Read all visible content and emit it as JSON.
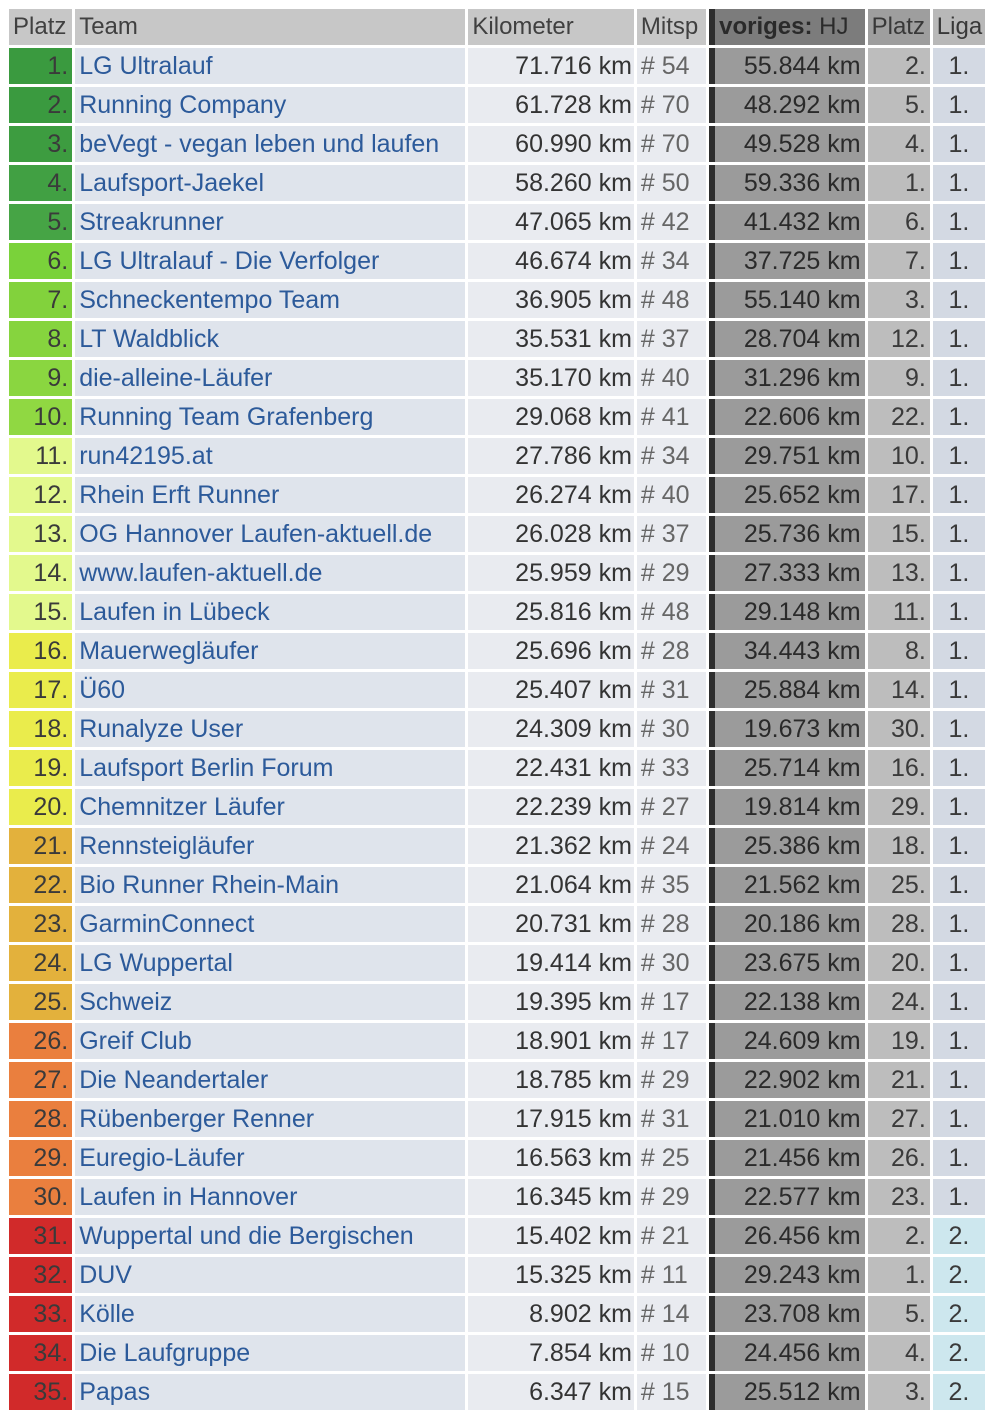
{
  "headers": {
    "platz": "Platz",
    "team": "Team",
    "kilometer": "Kilometer",
    "mitsp": "Mitsp",
    "voriges_bold": "voriges:",
    "voriges_rest": " HJ",
    "platz_prev": "Platz",
    "liga": "Liga"
  },
  "rows": [
    {
      "platz": "1.",
      "team": "LG Ultralauf",
      "km": "71.716 km",
      "mit": "# 54",
      "prev_km": "55.844 km",
      "prev_platz": "2.",
      "liga": "1.",
      "rank_color": "#3a9a3f"
    },
    {
      "platz": "2.",
      "team": "Running Company",
      "km": "61.728 km",
      "mit": "# 70",
      "prev_km": "48.292 km",
      "prev_platz": "5.",
      "liga": "1.",
      "rank_color": "#3a9a3f"
    },
    {
      "platz": "3.",
      "team": "beVegt - vegan leben und laufen",
      "km": "60.990 km",
      "mit": "# 70",
      "prev_km": "49.528 km",
      "prev_platz": "4.",
      "liga": "1.",
      "rank_color": "#3d9c40"
    },
    {
      "platz": "4.",
      "team": "Laufsport-Jaekel",
      "km": "58.260 km",
      "mit": "# 50",
      "prev_km": "59.336 km",
      "prev_platz": "1.",
      "liga": "1.",
      "rank_color": "#41a043"
    },
    {
      "platz": "5.",
      "team": "Streakrunner",
      "km": "47.065 km",
      "mit": "# 42",
      "prev_km": "41.432 km",
      "prev_platz": "6.",
      "liga": "1.",
      "rank_color": "#46a445"
    },
    {
      "platz": "6.",
      "team": "LG Ultralauf - Die Verfolger",
      "km": "46.674 km",
      "mit": "# 34",
      "prev_km": "37.725 km",
      "prev_platz": "7.",
      "liga": "1.",
      "rank_color": "#7ad23a"
    },
    {
      "platz": "7.",
      "team": "Schneckentempo Team",
      "km": "36.905 km",
      "mit": "# 48",
      "prev_km": "55.140 km",
      "prev_platz": "3.",
      "liga": "1.",
      "rank_color": "#82d23c"
    },
    {
      "platz": "8.",
      "team": "LT Waldblick",
      "km": "35.531 km",
      "mit": "# 37",
      "prev_km": "28.704 km",
      "prev_platz": "12.",
      "liga": "1.",
      "rank_color": "#86d43e"
    },
    {
      "platz": "9.",
      "team": "die-alleine-Läufer",
      "km": "35.170 km",
      "mit": "# 40",
      "prev_km": "31.296 km",
      "prev_platz": "9.",
      "liga": "1.",
      "rank_color": "#8ad640"
    },
    {
      "platz": "10.",
      "team": "Running Team Grafenberg",
      "km": "29.068 km",
      "mit": "# 41",
      "prev_km": "22.606 km",
      "prev_platz": "22.",
      "liga": "1.",
      "rank_color": "#90d842"
    },
    {
      "platz": "11.",
      "team": "run42195.at",
      "km": "27.786 km",
      "mit": "# 34",
      "prev_km": "29.751 km",
      "prev_platz": "10.",
      "liga": "1.",
      "rank_color": "#e3f98d"
    },
    {
      "platz": "12.",
      "team": "Rhein Erft Runner",
      "km": "26.274 km",
      "mit": "# 40",
      "prev_km": "25.652 km",
      "prev_platz": "17.",
      "liga": "1.",
      "rank_color": "#e3f98d"
    },
    {
      "platz": "13.",
      "team": "OG Hannover Laufen-aktuell.de",
      "km": "26.028 km",
      "mit": "# 37",
      "prev_km": "25.736 km",
      "prev_platz": "15.",
      "liga": "1.",
      "rank_color": "#e3f98d"
    },
    {
      "platz": "14.",
      "team": "www.laufen-aktuell.de",
      "km": "25.959 km",
      "mit": "# 29",
      "prev_km": "27.333 km",
      "prev_platz": "13.",
      "liga": "1.",
      "rank_color": "#e3f98d"
    },
    {
      "platz": "15.",
      "team": "Laufen in Lübeck",
      "km": "25.816 km",
      "mit": "# 48",
      "prev_km": "29.148 km",
      "prev_platz": "11.",
      "liga": "1.",
      "rank_color": "#e3f98d"
    },
    {
      "platz": "16.",
      "team": "Mauerwegläufer",
      "km": "25.696 km",
      "mit": "# 28",
      "prev_km": "34.443 km",
      "prev_platz": "8.",
      "liga": "1.",
      "rank_color": "#eaec4c"
    },
    {
      "platz": "17.",
      "team": "Ü60",
      "km": "25.407 km",
      "mit": "# 31",
      "prev_km": "25.884 km",
      "prev_platz": "14.",
      "liga": "1.",
      "rank_color": "#eaec4c"
    },
    {
      "platz": "18.",
      "team": "Runalyze User",
      "km": "24.309 km",
      "mit": "# 30",
      "prev_km": "19.673 km",
      "prev_platz": "30.",
      "liga": "1.",
      "rank_color": "#eaec4c"
    },
    {
      "platz": "19.",
      "team": "Laufsport Berlin Forum",
      "km": "22.431 km",
      "mit": "# 33",
      "prev_km": "25.714 km",
      "prev_platz": "16.",
      "liga": "1.",
      "rank_color": "#eaec4c"
    },
    {
      "platz": "20.",
      "team": "Chemnitzer Läufer",
      "km": "22.239 km",
      "mit": "# 27",
      "prev_km": "19.814 km",
      "prev_platz": "29.",
      "liga": "1.",
      "rank_color": "#eaec4c"
    },
    {
      "platz": "21.",
      "team": "Rennsteigläufer",
      "km": "21.362 km",
      "mit": "# 24",
      "prev_km": "25.386 km",
      "prev_platz": "18.",
      "liga": "1.",
      "rank_color": "#e3b13c"
    },
    {
      "platz": "22.",
      "team": "Bio Runner Rhein-Main",
      "km": "21.064 km",
      "mit": "# 35",
      "prev_km": "21.562 km",
      "prev_platz": "25.",
      "liga": "1.",
      "rank_color": "#e3b13c"
    },
    {
      "platz": "23.",
      "team": "GarminConnect",
      "km": "20.731 km",
      "mit": "# 28",
      "prev_km": "20.186 km",
      "prev_platz": "28.",
      "liga": "1.",
      "rank_color": "#e3b13c"
    },
    {
      "platz": "24.",
      "team": "LG Wuppertal",
      "km": "19.414 km",
      "mit": "# 30",
      "prev_km": "23.675 km",
      "prev_platz": "20.",
      "liga": "1.",
      "rank_color": "#e3b13c"
    },
    {
      "platz": "25.",
      "team": "Schweiz",
      "km": "19.395 km",
      "mit": "# 17",
      "prev_km": "22.138 km",
      "prev_platz": "24.",
      "liga": "1.",
      "rank_color": "#e3b13c"
    },
    {
      "platz": "26.",
      "team": "Greif Club",
      "km": "18.901 km",
      "mit": "# 17",
      "prev_km": "24.609 km",
      "prev_platz": "19.",
      "liga": "1.",
      "rank_color": "#ea7f3e"
    },
    {
      "platz": "27.",
      "team": "Die Neandertaler",
      "km": "18.785 km",
      "mit": "# 29",
      "prev_km": "22.902 km",
      "prev_platz": "21.",
      "liga": "1.",
      "rank_color": "#ea7f3e"
    },
    {
      "platz": "28.",
      "team": "Rübenberger Renner",
      "km": "17.915 km",
      "mit": "# 31",
      "prev_km": "21.010 km",
      "prev_platz": "27.",
      "liga": "1.",
      "rank_color": "#ea7f3e"
    },
    {
      "platz": "29.",
      "team": "Euregio-Läufer",
      "km": "16.563 km",
      "mit": "# 25",
      "prev_km": "21.456 km",
      "prev_platz": "26.",
      "liga": "1.",
      "rank_color": "#ea7f3e"
    },
    {
      "platz": "30.",
      "team": "Laufen in Hannover",
      "km": "16.345 km",
      "mit": "# 29",
      "prev_km": "22.577 km",
      "prev_platz": "23.",
      "liga": "1.",
      "rank_color": "#ea7f3e"
    },
    {
      "platz": "31.",
      "team": "Wuppertal und die Bergischen",
      "km": "15.402 km",
      "mit": "# 21",
      "prev_km": "26.456 km",
      "prev_platz": "2.",
      "liga": "2.",
      "rank_color": "#d12a2a"
    },
    {
      "platz": "32.",
      "team": "DUV",
      "km": "15.325 km",
      "mit": "# 11",
      "prev_km": "29.243 km",
      "prev_platz": "1.",
      "liga": "2.",
      "rank_color": "#d12a2a"
    },
    {
      "platz": "33.",
      "team": "Kölle",
      "km": "8.902 km",
      "mit": "# 14",
      "prev_km": "23.708 km",
      "prev_platz": "5.",
      "liga": "2.",
      "rank_color": "#d12a2a"
    },
    {
      "platz": "34.",
      "team": "Die Laufgruppe",
      "km": "7.854 km",
      "mit": "# 10",
      "prev_km": "24.456 km",
      "prev_platz": "4.",
      "liga": "2.",
      "rank_color": "#d12a2a"
    },
    {
      "platz": "35.",
      "team": "Papas",
      "km": "6.347 km",
      "mit": "# 15",
      "prev_km": "25.512 km",
      "prev_platz": "3.",
      "liga": "2.",
      "rank_color": "#d12a2a"
    }
  ]
}
